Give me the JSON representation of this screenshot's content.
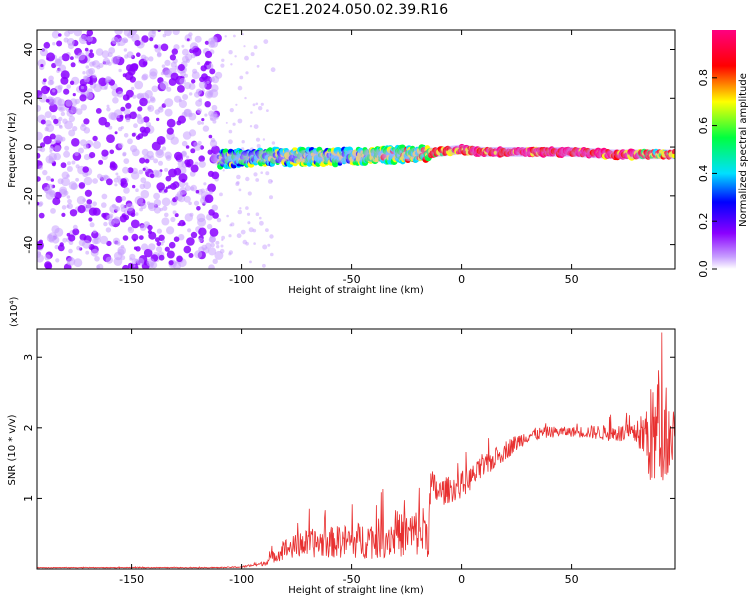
{
  "title": "C2E1.2024.050.02.39.R16",
  "chart_data": [
    {
      "type": "heatmap",
      "xlabel": "Height of straight line (km)",
      "ylabel": "Frequency (Hz)",
      "xlim": [
        -193,
        97
      ],
      "ylim": [
        -50,
        48
      ],
      "xticks": [
        -150,
        -100,
        -50,
        0,
        50
      ],
      "yticks": [
        -40,
        -20,
        0,
        20,
        40
      ],
      "colorbar": {
        "label": "Normalized spectral amplitude",
        "range": [
          0,
          1
        ],
        "ticks": [
          "0.0",
          "0.2",
          "0.4",
          "0.6",
          "0.8"
        ],
        "colors": [
          "#ffffff",
          "#8a00ff",
          "#0000ff",
          "#00e0ff",
          "#00ff40",
          "#ffff00",
          "#ff0000",
          "#ff0080"
        ]
      },
      "noise_region_x": [
        -193,
        -110
      ],
      "ridge": [
        {
          "x": -110,
          "y": -5,
          "amp": 0.35
        },
        {
          "x": -90,
          "y": -4,
          "amp": 0.4
        },
        {
          "x": -70,
          "y": -4,
          "amp": 0.45
        },
        {
          "x": -50,
          "y": -4,
          "amp": 0.45
        },
        {
          "x": -30,
          "y": -3,
          "amp": 0.5
        },
        {
          "x": -20,
          "y": -3,
          "amp": 0.55
        },
        {
          "x": -10,
          "y": -2,
          "amp": 0.7
        },
        {
          "x": 0,
          "y": -1,
          "amp": 0.8
        },
        {
          "x": 10,
          "y": -2,
          "amp": 0.85
        },
        {
          "x": 30,
          "y": -2,
          "amp": 0.9
        },
        {
          "x": 50,
          "y": -2,
          "amp": 0.9
        },
        {
          "x": 70,
          "y": -3,
          "amp": 0.85
        },
        {
          "x": 90,
          "y": -3,
          "amp": 0.6
        }
      ]
    },
    {
      "type": "line",
      "xlabel": "Height of straight line (km)",
      "ylabel": "SNR (10 * v/v)",
      "yscale_label": "(x10⁴)",
      "xlim": [
        -193,
        97
      ],
      "ylim": [
        0,
        3.4
      ],
      "xticks": [
        -150,
        -100,
        -50,
        0,
        50
      ],
      "yticks": [
        1,
        2,
        3
      ],
      "color": "#e83030",
      "envelope": {
        "x": [
          -193,
          -110,
          -100,
          -90,
          -80,
          -70,
          -60,
          -50,
          -40,
          -30,
          -20,
          -15,
          -14,
          -10,
          0,
          10,
          20,
          30,
          40,
          50,
          60,
          70,
          80,
          88,
          92,
          97
        ],
        "y": [
          0.02,
          0.02,
          0.03,
          0.08,
          0.3,
          0.38,
          0.4,
          0.42,
          0.45,
          0.5,
          0.55,
          0.6,
          1.2,
          1.1,
          1.2,
          1.45,
          1.7,
          1.9,
          1.95,
          1.95,
          1.95,
          1.93,
          1.92,
          1.95,
          1.95,
          1.9
        ],
        "noise": [
          0.005,
          0.005,
          0.01,
          0.03,
          0.15,
          0.2,
          0.22,
          0.25,
          0.28,
          0.3,
          0.35,
          0.4,
          0.25,
          0.2,
          0.18,
          0.16,
          0.14,
          0.1,
          0.08,
          0.07,
          0.1,
          0.12,
          0.15,
          0.9,
          0.6,
          0.5
        ]
      }
    }
  ]
}
